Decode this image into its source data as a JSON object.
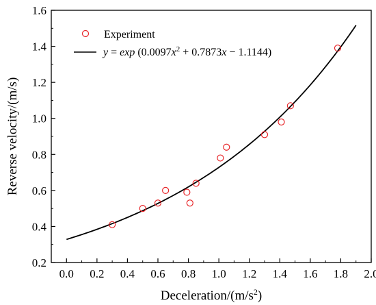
{
  "chart_data": {
    "type": "scatter",
    "xlabel": "Deceleration/(m/s",
    "xlabel_sup": "2",
    "xlabel_end": ")",
    "ylabel": "Reverse velocity/(m/s)",
    "xlim": [
      -0.1,
      2.0
    ],
    "ylim": [
      0.2,
      1.6
    ],
    "x_ticks": [
      "0.0",
      "0.2",
      "0.4",
      "0.6",
      "0.8",
      "1.0",
      "1.2",
      "1.4",
      "1.6",
      "1.8",
      "2.0"
    ],
    "y_ticks": [
      "0.2",
      "0.4",
      "0.6",
      "0.8",
      "1.0",
      "1.2",
      "1.4",
      "1.6"
    ],
    "grid": false,
    "legend_position": "top-left",
    "series": [
      {
        "name": "Experiment",
        "kind": "scatter",
        "marker": "open-circle",
        "color": "#e8282b",
        "points": [
          [
            0.3,
            0.41
          ],
          [
            0.5,
            0.5
          ],
          [
            0.6,
            0.53
          ],
          [
            0.65,
            0.6
          ],
          [
            0.79,
            0.59
          ],
          [
            0.81,
            0.53
          ],
          [
            0.85,
            0.64
          ],
          [
            1.01,
            0.78
          ],
          [
            1.05,
            0.84
          ],
          [
            1.3,
            0.91
          ],
          [
            1.41,
            0.98
          ],
          [
            1.47,
            1.07
          ],
          [
            1.78,
            1.39
          ]
        ]
      },
      {
        "name": "y = exp (0.0097x² + 0.7873x − 1.1144)",
        "kind": "fit-line",
        "color": "#000000",
        "coefficients": {
          "a": 0.0097,
          "b": 0.7873,
          "c": -1.1144
        },
        "x_range": [
          0.0,
          1.9
        ]
      }
    ],
    "legend": {
      "experiment": "Experiment",
      "fit_y": "y",
      "fit_eq": " = ",
      "fit_exp": "exp",
      "fit_open": " (0.0097",
      "fit_x1": "x",
      "fit_sup": "2",
      "fit_mid": " + 0.7873",
      "fit_x2": "x",
      "fit_end": " − 1.1144)"
    }
  }
}
